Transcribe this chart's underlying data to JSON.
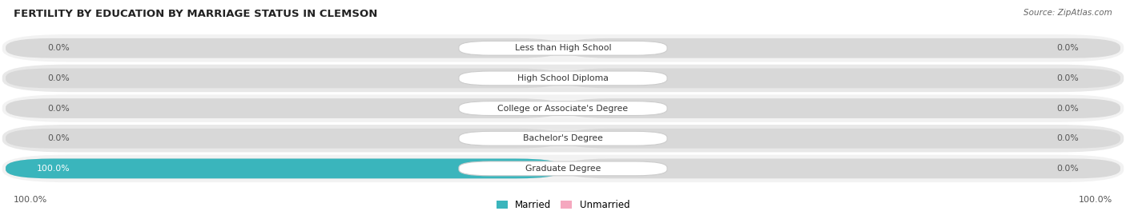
{
  "title": "FERTILITY BY EDUCATION BY MARRIAGE STATUS IN CLEMSON",
  "source": "Source: ZipAtlas.com",
  "categories": [
    "Less than High School",
    "High School Diploma",
    "College or Associate's Degree",
    "Bachelor's Degree",
    "Graduate Degree"
  ],
  "married": [
    0.0,
    0.0,
    0.0,
    0.0,
    100.0
  ],
  "unmarried": [
    0.0,
    0.0,
    0.0,
    0.0,
    0.0
  ],
  "married_color": "#3ab5bc",
  "unmarried_color": "#f5a8bf",
  "bar_bg_left_color": "#d8d8d8",
  "bar_bg_right_color": "#d8d8d8",
  "row_bg_odd": "#f2f2f2",
  "row_bg_even": "#e8e8e8",
  "label_left_pct": [
    0.0,
    0.0,
    0.0,
    0.0,
    100.0
  ],
  "label_right_pct": [
    0.0,
    0.0,
    0.0,
    0.0,
    0.0
  ],
  "axis_label_left": "100.0%",
  "axis_label_right": "100.0%",
  "legend_married": "Married",
  "legend_unmarried": "Unmarried",
  "figsize": [
    14.06,
    2.69
  ],
  "dpi": 100
}
